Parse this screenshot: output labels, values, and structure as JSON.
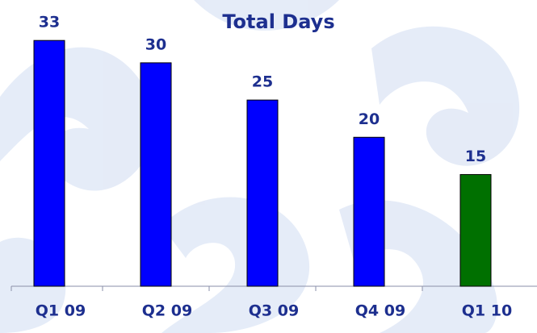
{
  "chart_data": {
    "type": "bar",
    "title": "Total Days",
    "categories": [
      "Q1 09",
      "Q2 09",
      "Q3 09",
      "Q4 09",
      "Q1 10"
    ],
    "values": [
      33,
      30,
      25,
      20,
      15
    ],
    "colors": [
      "#0000ff",
      "#0000ff",
      "#0000ff",
      "#0000ff",
      "#007000"
    ],
    "ylim": [
      0,
      38
    ]
  }
}
